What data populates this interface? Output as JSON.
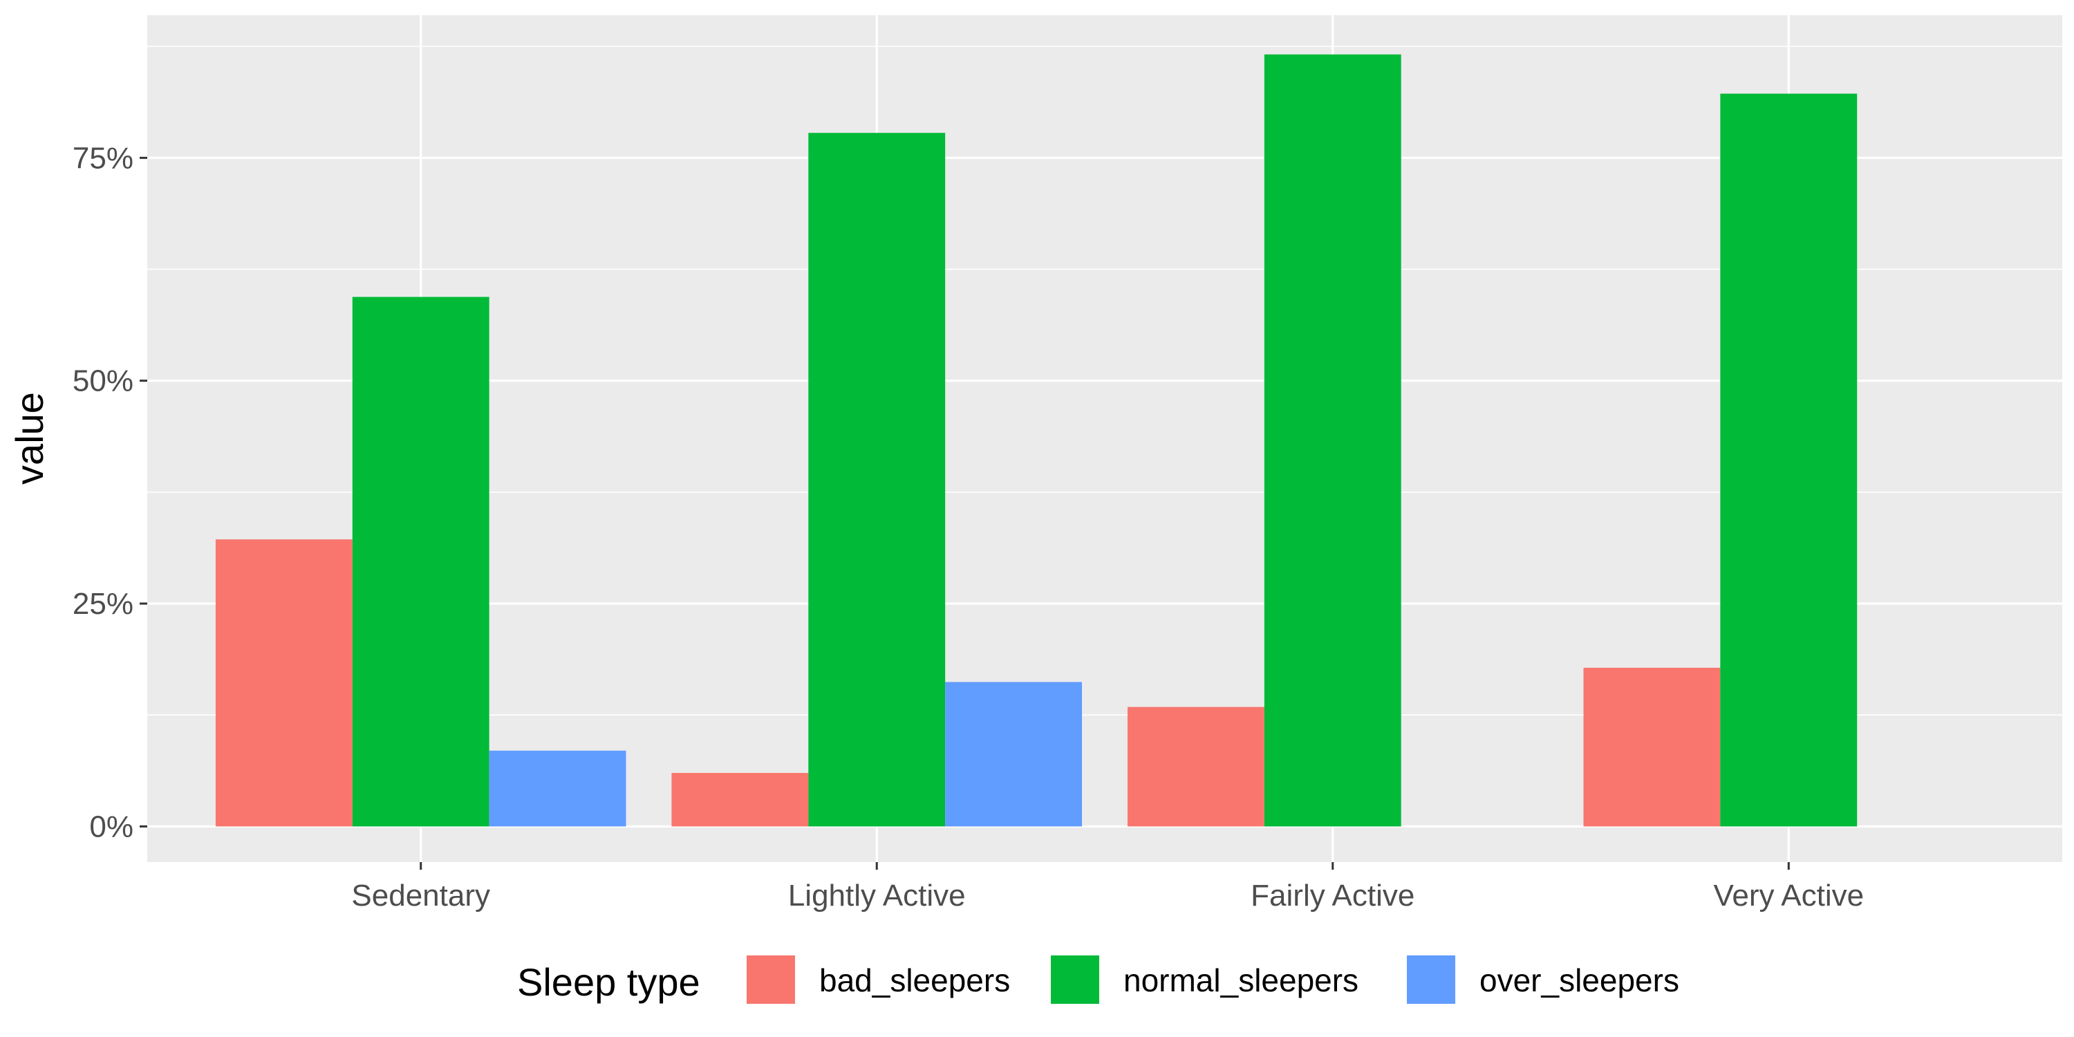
{
  "chart_data": {
    "type": "bar",
    "title": "",
    "xlabel": "",
    "ylabel": "value",
    "categories": [
      "Sedentary",
      "Lightly Active",
      "Fairly Active",
      "Very Active"
    ],
    "series": [
      {
        "name": "bad_sleepers",
        "color": "#F8766D",
        "values": [
          0.322,
          0.06,
          0.134,
          0.178
        ]
      },
      {
        "name": "normal_sleepers",
        "color": "#00BA38",
        "values": [
          0.594,
          0.778,
          0.866,
          0.822
        ]
      },
      {
        "name": "over_sleepers",
        "color": "#619CFF",
        "values": [
          0.085,
          0.162,
          0.0,
          0.0
        ]
      }
    ],
    "ylim": [
      -0.04,
      0.91
    ],
    "y_ticks": [
      0,
      0.25,
      0.5,
      0.75
    ],
    "y_tick_labels": [
      "0%",
      "25%",
      "50%",
      "75%"
    ],
    "grid": true,
    "legend": {
      "title": "Sleep type",
      "position": "bottom"
    },
    "colors": {
      "panel_background": "#EBEBEB",
      "grid": "#FFFFFF"
    }
  }
}
